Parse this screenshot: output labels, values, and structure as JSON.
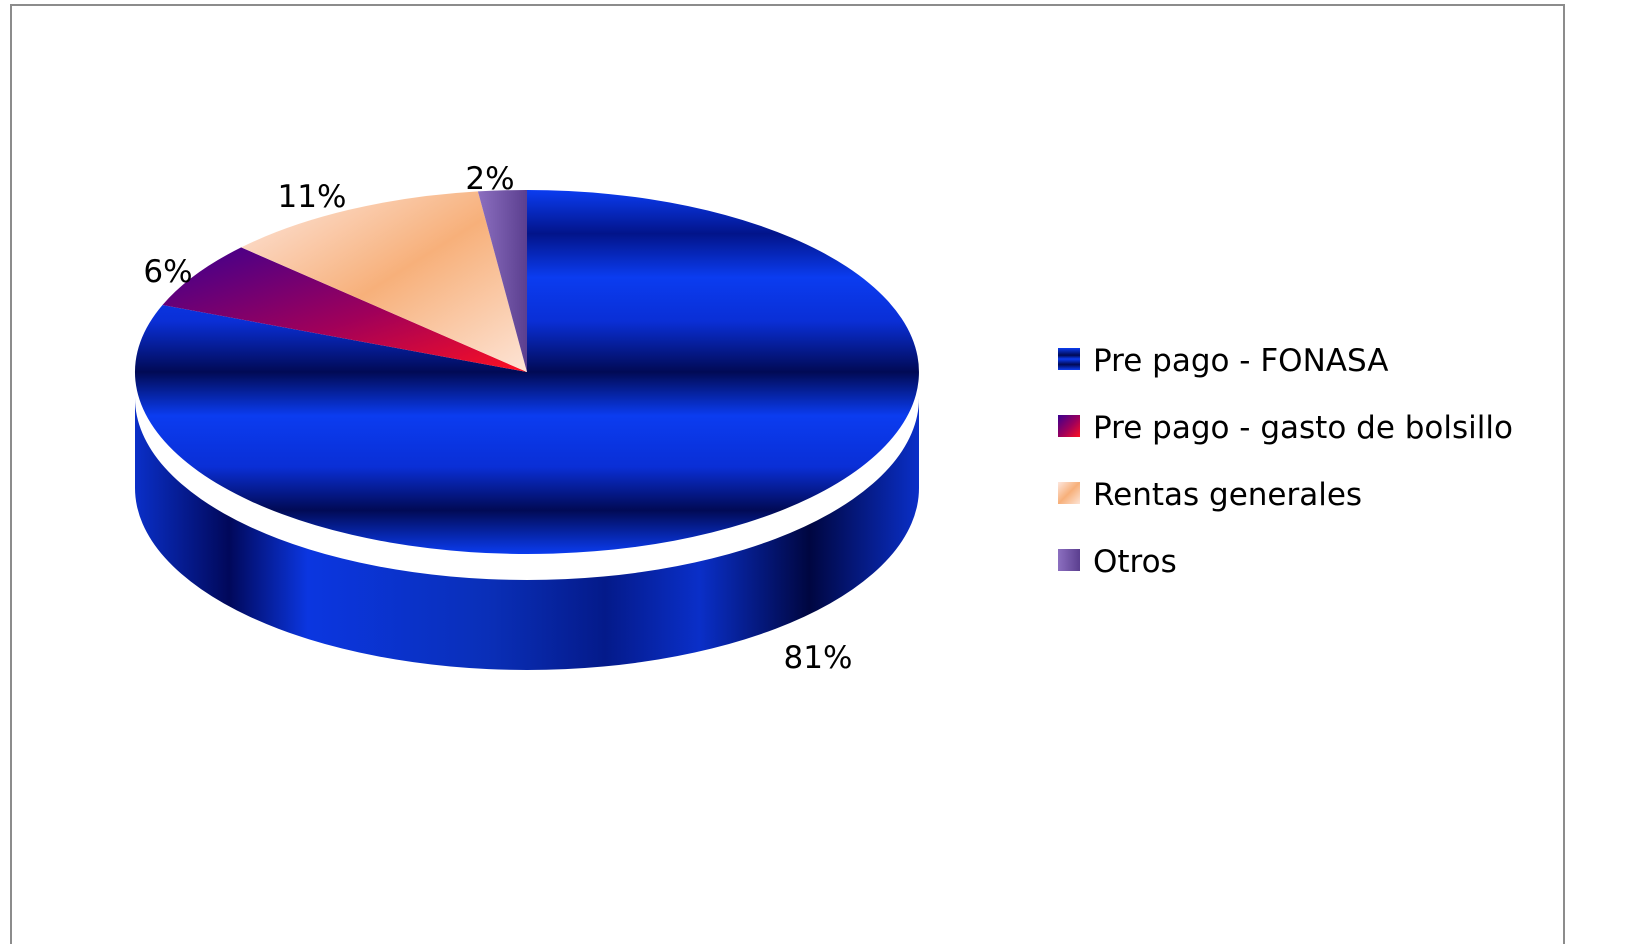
{
  "chart_data": {
    "type": "pie",
    "categories": [
      "Pre pago - FONASA",
      "Pre pago - gasto de bolsillo",
      "Rentas generales",
      "Otros"
    ],
    "values": [
      81,
      6,
      11,
      2
    ],
    "data_labels": [
      "81%",
      "6%",
      "11%",
      "2%"
    ],
    "colors": [
      "#0a2fd6",
      "#8a0070",
      "#f6b47a",
      "#7a5aa8"
    ],
    "style": "3d",
    "legend_position": "right"
  }
}
